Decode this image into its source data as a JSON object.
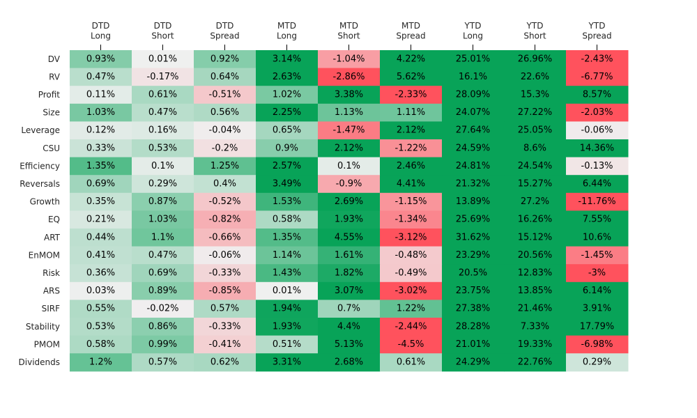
{
  "chart_data": {
    "type": "heatmap",
    "title": "",
    "columns": [
      [
        "DTD",
        "Long"
      ],
      [
        "DTD",
        "Short"
      ],
      [
        "DTD",
        "Spread"
      ],
      [
        "MTD",
        "Long"
      ],
      [
        "MTD",
        "Short"
      ],
      [
        "MTD",
        "Spread"
      ],
      [
        "YTD",
        "Long"
      ],
      [
        "YTD",
        "Short"
      ],
      [
        "YTD",
        "Spread"
      ]
    ],
    "rows": [
      "DV",
      "RV",
      "Profit",
      "Size",
      "Leverage",
      "CSU",
      "Efficiency",
      "Reversals",
      "Growth",
      "EQ",
      "ART",
      "EnMOM",
      "Risk",
      "ARS",
      "SIRF",
      "Stability",
      "PMOM",
      "Dividends"
    ],
    "values": [
      [
        0.93,
        0.01,
        0.92,
        3.14,
        -1.04,
        4.22,
        25.01,
        26.96,
        -2.43
      ],
      [
        0.47,
        -0.17,
        0.64,
        2.63,
        -2.86,
        5.62,
        16.1,
        22.6,
        -6.77
      ],
      [
        0.11,
        0.61,
        -0.51,
        1.02,
        3.38,
        -2.33,
        28.09,
        15.3,
        8.57
      ],
      [
        1.03,
        0.47,
        0.56,
        2.25,
        1.13,
        1.11,
        24.07,
        27.22,
        -2.03
      ],
      [
        0.12,
        0.16,
        -0.04,
        0.65,
        -1.47,
        2.12,
        27.64,
        25.05,
        -0.06
      ],
      [
        0.33,
        0.53,
        -0.2,
        0.9,
        2.12,
        -1.22,
        24.59,
        8.6,
        14.36
      ],
      [
        1.35,
        0.1,
        1.25,
        2.57,
        0.1,
        2.46,
        24.81,
        24.54,
        -0.13
      ],
      [
        0.69,
        0.29,
        0.4,
        3.49,
        -0.9,
        4.41,
        21.32,
        15.27,
        6.44
      ],
      [
        0.35,
        0.87,
        -0.52,
        1.53,
        2.69,
        -1.15,
        13.89,
        27.2,
        -11.76
      ],
      [
        0.21,
        1.03,
        -0.82,
        0.58,
        1.93,
        -1.34,
        25.69,
        16.26,
        7.55
      ],
      [
        0.44,
        1.1,
        -0.66,
        1.35,
        4.55,
        -3.12,
        31.62,
        15.12,
        10.6
      ],
      [
        0.41,
        0.47,
        -0.06,
        1.14,
        1.61,
        -0.48,
        23.29,
        20.56,
        -1.45
      ],
      [
        0.36,
        0.69,
        -0.33,
        1.43,
        1.82,
        -0.49,
        20.5,
        12.83,
        -3.0
      ],
      [
        0.03,
        0.89,
        -0.85,
        0.01,
        3.07,
        -3.02,
        23.75,
        13.85,
        6.14
      ],
      [
        0.55,
        -0.02,
        0.57,
        1.94,
        0.7,
        1.22,
        27.38,
        21.46,
        3.91
      ],
      [
        0.53,
        0.86,
        -0.33,
        1.93,
        4.4,
        -2.44,
        28.28,
        7.33,
        17.79
      ],
      [
        0.58,
        0.99,
        -0.41,
        0.51,
        5.13,
        -4.5,
        21.01,
        19.33,
        -6.98
      ],
      [
        1.2,
        0.57,
        0.62,
        3.31,
        2.68,
        0.61,
        24.29,
        22.76,
        0.29
      ]
    ],
    "value_format": "percent",
    "color_range": [
      -2,
      2
    ],
    "colors": {
      "negative": "#ff525d",
      "neutral": "#f0f0f0",
      "positive": "#08a358"
    },
    "grid": false,
    "legend": "none"
  }
}
